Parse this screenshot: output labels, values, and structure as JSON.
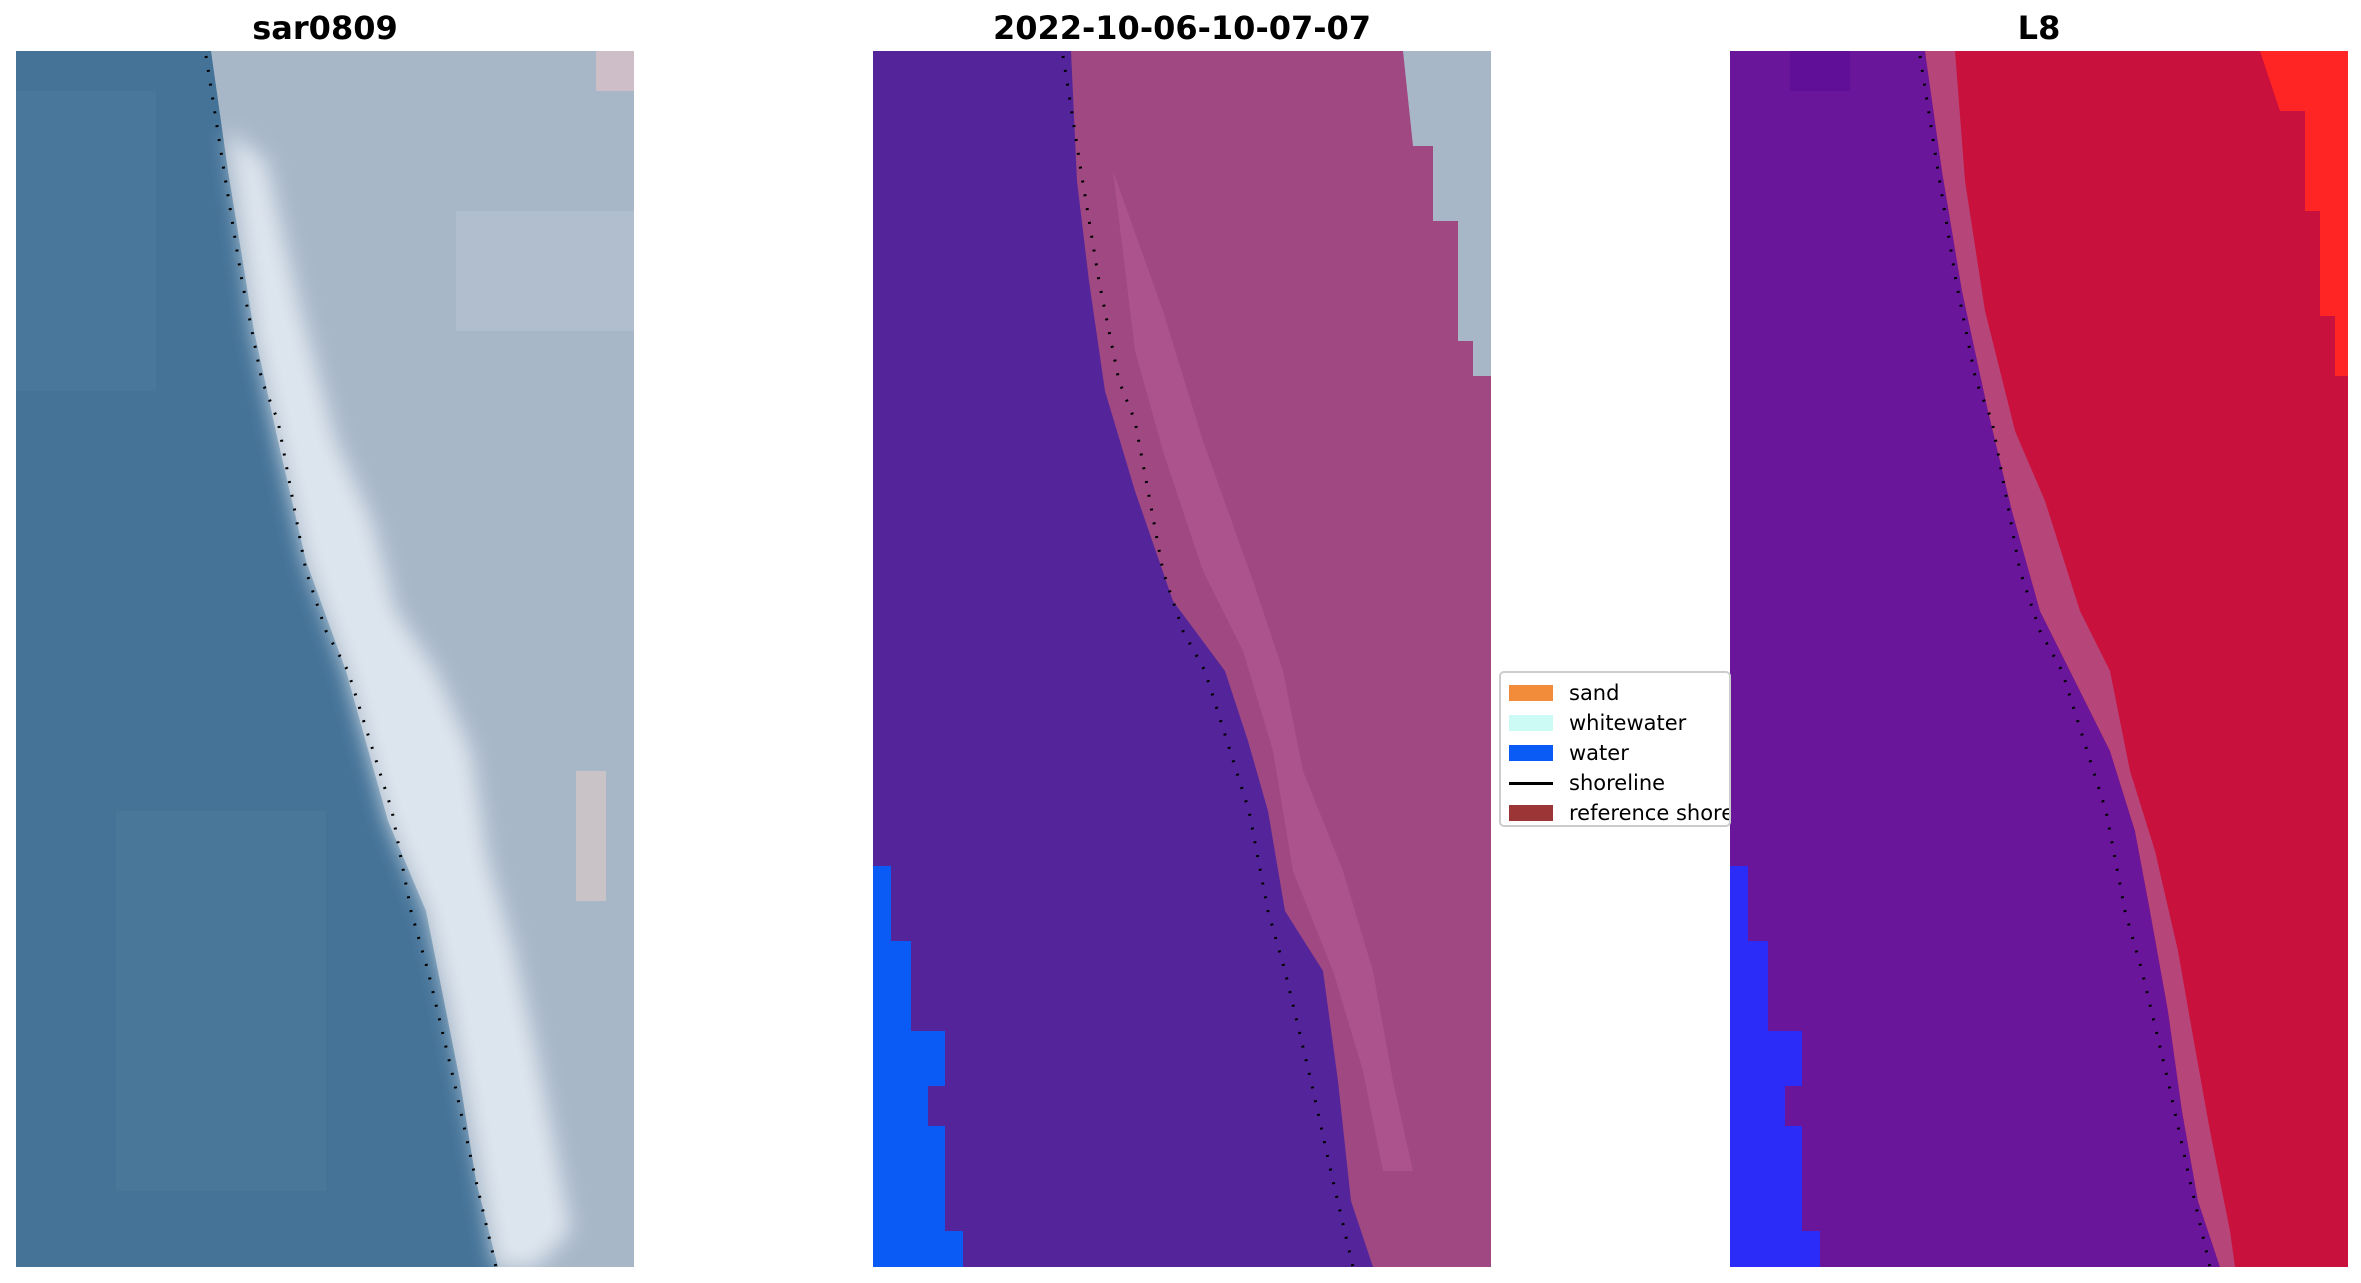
{
  "panels": [
    {
      "title": "sar0809"
    },
    {
      "title": "2022-10-06-10-07-07"
    },
    {
      "title": "L8"
    }
  ],
  "legend": {
    "items": [
      {
        "label": "sand",
        "kind": "patch",
        "color": "#f28c3a"
      },
      {
        "label": "whitewater",
        "kind": "patch",
        "color": "#ccfbf6"
      },
      {
        "label": "water",
        "kind": "patch",
        "color": "#0a5af5"
      },
      {
        "label": "shoreline",
        "kind": "line",
        "color": "#000000"
      },
      {
        "label": "reference shore",
        "kind": "patch",
        "color": "#9c3535"
      }
    ]
  },
  "colors": {
    "rgb_sea": "#457398",
    "rgb_land": "#a8b7c8",
    "rgb_bright": "#e6edf4",
    "class_background": "#54259a",
    "class_land": "#a04882",
    "class_water": "#0a5af5",
    "l8_sea": "#6a169a",
    "l8_land": "#c8123d",
    "l8_water": "#2b2cf7",
    "l8_bright_red": "#ff2525"
  }
}
